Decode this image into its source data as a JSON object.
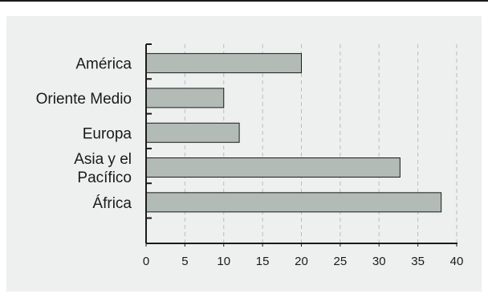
{
  "chart_data": {
    "type": "bar",
    "orientation": "horizontal",
    "categories": [
      "América",
      "Oriente Medio",
      "Europa",
      "Asia y el Pacífico",
      "África"
    ],
    "category_label_lines": [
      [
        "América"
      ],
      [
        "Oriente Medio"
      ],
      [
        "Europa"
      ],
      [
        "Asia y el",
        "Pacífico"
      ],
      [
        "África"
      ]
    ],
    "values": [
      20,
      10,
      12,
      32.7,
      38
    ],
    "xlim": [
      0,
      40
    ],
    "xticks": [
      0,
      5,
      10,
      15,
      20,
      25,
      30,
      35,
      40
    ],
    "grid": "vertical dashed",
    "title": "",
    "xlabel": "",
    "ylabel": ""
  },
  "colors": {
    "bar_fill": "#b2bbb6",
    "bar_stroke": "#1a1a1a",
    "panel": "#eef0f0",
    "grid": "#b9bdbd",
    "axis": "#1a1a1a"
  }
}
